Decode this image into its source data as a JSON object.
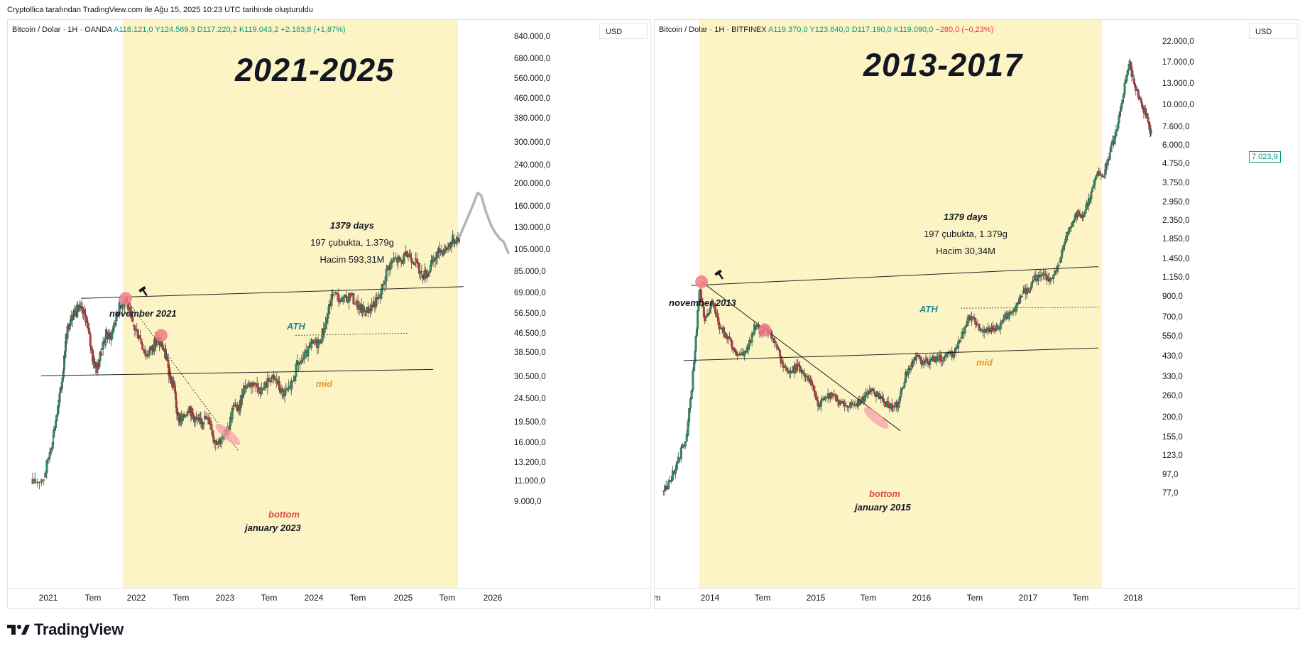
{
  "header": {
    "attribution": "Cryptollica tarafından TradingView.com ile Ağu 15, 2025 10:23 UTC tarihinde oluşturuldu"
  },
  "footer": {
    "logo_text": "TradingView"
  },
  "panels": [
    {
      "legend": {
        "symbol": "Bitcoin / Dolar · 1H · OANDA",
        "open": "A118.121,0",
        "high": "Y124.569,3",
        "low": "D117.220,2",
        "close": "K119.043,2",
        "change": "+2.183,8 (+1,87%)"
      },
      "currency": "USD",
      "title": "2021-2025",
      "stats": {
        "days": "1379 days",
        "bars": "197 çubukta, 1.379g",
        "volume": "Hacim 593,31M"
      },
      "annotations": {
        "top_label": "november 2021",
        "ath": "ATH",
        "mid": "mid",
        "bottom": "bottom",
        "bottom_date": "january 2023"
      },
      "y_ticks": [
        "840.000,0",
        "680.000,0",
        "560.000,0",
        "460.000,0",
        "380.000,0",
        "300.000,0",
        "240.000,0",
        "200.000,0",
        "160.000,0",
        "130.000,0",
        "105.000,0",
        "85.000,0",
        "69.000,0",
        "56.500,0",
        "46.500,0",
        "38.500,0",
        "30.500,0",
        "24.500,0",
        "19.500,0",
        "16.000,0",
        "13.200,0",
        "11.000,0",
        "9.000,0"
      ],
      "x_ticks": [
        "2021",
        "Tem",
        "2022",
        "Tem",
        "2023",
        "Tem",
        "2024",
        "Tem",
        "2025",
        "Tem",
        "2026"
      ]
    },
    {
      "legend": {
        "symbol": "Bitcoin / Dolar · 1H · BITFINEX",
        "open": "A119.370,0",
        "high": "Y123.640,0",
        "low": "D117.190,0",
        "close": "K119.090,0",
        "change": "−280,0 (−0,23%)"
      },
      "currency": "USD",
      "title": "2013-2017",
      "stats": {
        "days": "1379 days",
        "bars": "197 çubukta, 1.379g",
        "volume": "Hacim 30,34M"
      },
      "annotations": {
        "top_label": "november 2013",
        "ath": "ATH",
        "mid": "mid",
        "bottom": "bottom",
        "bottom_date": "january 2015"
      },
      "price_tag": "7.023,9",
      "y_ticks": [
        "22.000,0",
        "17.000,0",
        "13.000,0",
        "10.000,0",
        "7.600,0",
        "6.000,0",
        "4.750,0",
        "3.750,0",
        "2.950,0",
        "2.350,0",
        "1.850,0",
        "1.450,0",
        "1.150,0",
        "900,0",
        "700,0",
        "550,0",
        "430,0",
        "330,0",
        "260,0",
        "200,0",
        "155,0",
        "123,0",
        "97,0",
        "77,0"
      ],
      "x_ticks": [
        "em",
        "2014",
        "Tem",
        "2015",
        "Tem",
        "2016",
        "Tem",
        "2017",
        "Tem",
        "2018"
      ]
    }
  ],
  "chart_data": [
    {
      "type": "candlestick",
      "title": "2021-2025",
      "y_scale": "log",
      "ylim": [
        8500,
        900000
      ],
      "x_range": [
        "2020-11",
        "2026-03"
      ],
      "highlight_range": [
        "2021-11",
        "2025-08"
      ],
      "close_series": [
        [
          2020.8,
          10800
        ],
        [
          2020.95,
          11500
        ],
        [
          2021.05,
          17000
        ],
        [
          2021.12,
          24000
        ],
        [
          2021.17,
          33000
        ],
        [
          2021.2,
          45000
        ],
        [
          2021.25,
          55000
        ],
        [
          2021.3,
          58000
        ],
        [
          2021.35,
          60000
        ],
        [
          2021.42,
          55000
        ],
        [
          2021.5,
          37000
        ],
        [
          2021.55,
          33000
        ],
        [
          2021.6,
          40000
        ],
        [
          2021.65,
          47000
        ],
        [
          2021.7,
          45000
        ],
        [
          2021.75,
          53000
        ],
        [
          2021.8,
          61000
        ],
        [
          2021.87,
          66000
        ],
        [
          2021.95,
          51000
        ],
        [
          2022.02,
          46000
        ],
        [
          2022.1,
          38000
        ],
        [
          2022.17,
          41000
        ],
        [
          2022.22,
          44000
        ],
        [
          2022.28,
          42000
        ],
        [
          2022.33,
          37000
        ],
        [
          2022.37,
          30000
        ],
        [
          2022.42,
          28000
        ],
        [
          2022.45,
          21000
        ],
        [
          2022.5,
          20000
        ],
        [
          2022.58,
          23000
        ],
        [
          2022.63,
          21000
        ],
        [
          2022.7,
          19500
        ],
        [
          2022.75,
          20500
        ],
        [
          2022.82,
          20000
        ],
        [
          2022.87,
          16500
        ],
        [
          2022.95,
          16700
        ],
        [
          2023.02,
          18000
        ],
        [
          2023.08,
          23000
        ],
        [
          2023.15,
          22500
        ],
        [
          2023.2,
          28000
        ],
        [
          2023.3,
          29000
        ],
        [
          2023.4,
          27000
        ],
        [
          2023.5,
          30500
        ],
        [
          2023.57,
          29500
        ],
        [
          2023.63,
          26000
        ],
        [
          2023.72,
          27000
        ],
        [
          2023.8,
          34500
        ],
        [
          2023.9,
          38000
        ],
        [
          2023.97,
          42500
        ],
        [
          2024.05,
          43000
        ],
        [
          2024.12,
          52000
        ],
        [
          2024.2,
          70000
        ],
        [
          2024.3,
          64000
        ],
        [
          2024.4,
          68000
        ],
        [
          2024.5,
          60000
        ],
        [
          2024.57,
          58000
        ],
        [
          2024.65,
          62000
        ],
        [
          2024.72,
          66000
        ],
        [
          2024.82,
          90000
        ],
        [
          2024.9,
          97000
        ],
        [
          2024.97,
          95000
        ],
        [
          2025.05,
          102000
        ],
        [
          2025.12,
          96000
        ],
        [
          2025.2,
          83000
        ],
        [
          2025.27,
          85000
        ],
        [
          2025.33,
          95000
        ],
        [
          2025.4,
          105000
        ],
        [
          2025.47,
          107000
        ],
        [
          2025.55,
          117000
        ],
        [
          2025.62,
          119000
        ]
      ],
      "projection": [
        [
          2025.62,
          119000
        ],
        [
          2025.7,
          140000
        ],
        [
          2025.78,
          165000
        ],
        [
          2025.83,
          185000
        ],
        [
          2025.87,
          180000
        ],
        [
          2025.92,
          155000
        ],
        [
          2025.98,
          135000
        ],
        [
          2026.03,
          125000
        ],
        [
          2026.08,
          118000
        ],
        [
          2026.12,
          115000
        ],
        [
          2026.18,
          102000
        ]
      ],
      "levels": {
        "ath_line": [
          [
            2021.37,
            66000
          ],
          [
            2025.67,
            74000
          ]
        ],
        "support_line": [
          [
            2020.92,
            31000
          ],
          [
            2025.33,
            33000
          ]
        ],
        "mid_line": [
          [
            2023.78,
            46000
          ],
          [
            2025.05,
            47000
          ]
        ]
      },
      "markers": {
        "top": [
          2021.87,
          66000
        ],
        "lower_high": [
          2022.27,
          46000
        ],
        "bottom": [
          2023.02,
          17500
        ]
      }
    },
    {
      "type": "candlestick",
      "title": "2013-2017",
      "y_scale": "log",
      "ylim": [
        70,
        24000
      ],
      "x_range": [
        "2013-06",
        "2018-03"
      ],
      "highlight_range": [
        "2013-11",
        "2017-11"
      ],
      "close_series": [
        [
          2013.55,
          80
        ],
        [
          2013.62,
          90
        ],
        [
          2013.7,
          120
        ],
        [
          2013.78,
          160
        ],
        [
          2013.85,
          400
        ],
        [
          2013.9,
          1000
        ],
        [
          2013.95,
          700
        ],
        [
          2014.02,
          850
        ],
        [
          2014.08,
          650
        ],
        [
          2014.15,
          560
        ],
        [
          2014.22,
          480
        ],
        [
          2014.28,
          440
        ],
        [
          2014.35,
          470
        ],
        [
          2014.42,
          620
        ],
        [
          2014.48,
          600
        ],
        [
          2014.55,
          590
        ],
        [
          2014.62,
          500
        ],
        [
          2014.68,
          400
        ],
        [
          2014.75,
          350
        ],
        [
          2014.82,
          380
        ],
        [
          2014.88,
          350
        ],
        [
          2014.95,
          320
        ],
        [
          2015.02,
          230
        ],
        [
          2015.08,
          250
        ],
        [
          2015.15,
          270
        ],
        [
          2015.22,
          240
        ],
        [
          2015.3,
          230
        ],
        [
          2015.38,
          240
        ],
        [
          2015.45,
          250
        ],
        [
          2015.52,
          290
        ],
        [
          2015.58,
          270
        ],
        [
          2015.65,
          240
        ],
        [
          2015.72,
          230
        ],
        [
          2015.78,
          240
        ],
        [
          2015.85,
          340
        ],
        [
          2015.9,
          380
        ],
        [
          2015.95,
          430
        ],
        [
          2016.02,
          400
        ],
        [
          2016.08,
          410
        ],
        [
          2016.15,
          420
        ],
        [
          2016.22,
          430
        ],
        [
          2016.3,
          450
        ],
        [
          2016.37,
          540
        ],
        [
          2016.45,
          700
        ],
        [
          2016.52,
          650
        ],
        [
          2016.58,
          580
        ],
        [
          2016.65,
          600
        ],
        [
          2016.72,
          620
        ],
        [
          2016.8,
          720
        ],
        [
          2016.88,
          750
        ],
        [
          2016.95,
          950
        ],
        [
          2017.02,
          1000
        ],
        [
          2017.08,
          1150
        ],
        [
          2017.15,
          1200
        ],
        [
          2017.22,
          1150
        ],
        [
          2017.3,
          1400
        ],
        [
          2017.38,
          2000
        ],
        [
          2017.45,
          2600
        ],
        [
          2017.52,
          2500
        ],
        [
          2017.58,
          3000
        ],
        [
          2017.65,
          4300
        ],
        [
          2017.72,
          4200
        ],
        [
          2017.78,
          5600
        ],
        [
          2017.85,
          7500
        ],
        [
          2017.9,
          11000
        ],
        [
          2017.96,
          17500
        ],
        [
          2018.0,
          14000
        ],
        [
          2018.05,
          11000
        ],
        [
          2018.1,
          9500
        ],
        [
          2018.15,
          7800
        ],
        [
          2018.17,
          7000
        ]
      ],
      "levels": {
        "ath_line": [
          [
            2013.82,
            1050
          ],
          [
            2017.67,
            1330
          ]
        ],
        "support_line": [
          [
            2013.75,
            410
          ],
          [
            2017.67,
            480
          ]
        ],
        "mid_line": [
          [
            2016.37,
            790
          ],
          [
            2017.67,
            800
          ]
        ],
        "trend_line": [
          [
            2013.92,
            1100
          ],
          [
            2015.8,
            170
          ]
        ]
      },
      "markers": {
        "top": [
          2013.92,
          1100
        ],
        "lower_high": [
          2014.52,
          600
        ],
        "bottom": [
          2015.57,
          200
        ]
      }
    }
  ]
}
